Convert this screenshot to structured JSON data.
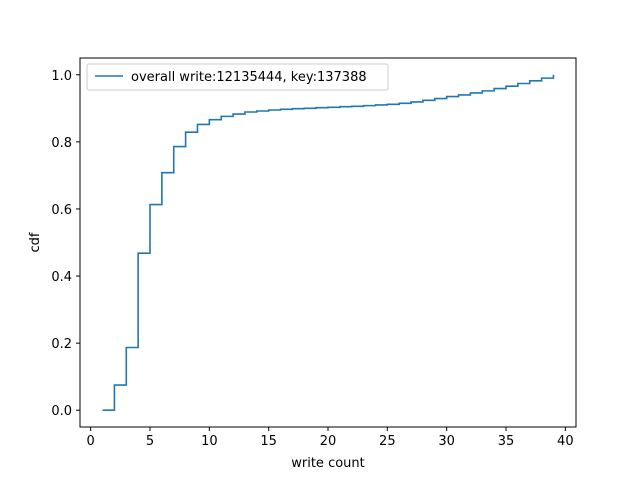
{
  "chart_data": {
    "type": "line",
    "step": "post",
    "xlabel": "write count",
    "ylabel": "cdf",
    "xlim": [
      -0.9,
      40.9
    ],
    "ylim": [
      -0.05,
      1.05
    ],
    "xticks": [
      0,
      5,
      10,
      15,
      20,
      25,
      30,
      35,
      40
    ],
    "yticks": [
      0.0,
      0.2,
      0.4,
      0.6,
      0.8,
      1.0
    ],
    "xtick_labels": [
      "0",
      "5",
      "10",
      "15",
      "20",
      "25",
      "30",
      "35",
      "40"
    ],
    "ytick_labels": [
      "0.0",
      "0.2",
      "0.4",
      "0.6",
      "0.8",
      "1.0"
    ],
    "grid": false,
    "legend_position": "upper-left",
    "series": [
      {
        "name": "overall write:12135444, key:137388",
        "color": "#1f77b4",
        "x": [
          1,
          2,
          3,
          4,
          5,
          6,
          7,
          8,
          9,
          10,
          11,
          12,
          13,
          14,
          15,
          16,
          17,
          18,
          19,
          20,
          21,
          22,
          23,
          24,
          25,
          26,
          27,
          28,
          29,
          30,
          31,
          32,
          33,
          34,
          35,
          36,
          37,
          38,
          39
        ],
        "y": [
          0.0,
          0.075,
          0.187,
          0.468,
          0.613,
          0.708,
          0.786,
          0.829,
          0.852,
          0.866,
          0.876,
          0.883,
          0.889,
          0.892,
          0.895,
          0.897,
          0.899,
          0.9,
          0.902,
          0.903,
          0.905,
          0.906,
          0.908,
          0.91,
          0.912,
          0.915,
          0.919,
          0.924,
          0.929,
          0.935,
          0.94,
          0.946,
          0.952,
          0.959,
          0.966,
          0.974,
          0.982,
          0.99,
          0.998
        ],
        "final_x": 39,
        "final_y": 1.0
      }
    ]
  }
}
